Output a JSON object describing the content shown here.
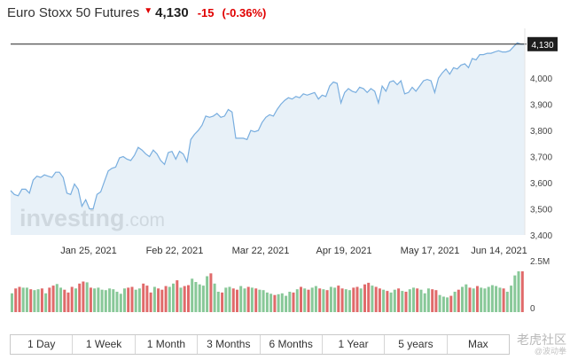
{
  "header": {
    "title": "Euro Stoxx 50 Futures",
    "price": "4,130",
    "change": "-15",
    "change_pct": "(-0.36%)",
    "colors": {
      "down": "#e00000"
    }
  },
  "watermark": {
    "logo": "investing.com",
    "corner_big": "老虎社区",
    "corner_small": "@波动拳"
  },
  "tabs": [
    "1 Day",
    "1 Week",
    "1 Month",
    "3 Months",
    "6 Months",
    "1 Year",
    "5 years",
    "Max"
  ],
  "chart_data": {
    "type": "area",
    "x_tick_labels": [
      "Jan 25, 2021",
      "Feb 22, 2021",
      "Mar 22, 2021",
      "Apr 19, 2021",
      "May 17, 2021",
      "Jun 14, 2021"
    ],
    "y_tick_labels": [
      "4,000",
      "3,900",
      "3,800",
      "3,700",
      "3,600",
      "3,500",
      "3,400"
    ],
    "y_ticks": [
      4000,
      3900,
      3800,
      3700,
      3600,
      3500,
      3400
    ],
    "ylim": [
      3400,
      4170
    ],
    "last_value": 4130,
    "last_value_label": "4,130",
    "series": [
      {
        "values": [
          3570,
          3555,
          3550,
          3575,
          3575,
          3560,
          3610,
          3625,
          3620,
          3630,
          3625,
          3620,
          3640,
          3640,
          3620,
          3560,
          3555,
          3595,
          3575,
          3510,
          3535,
          3500,
          3500,
          3555,
          3565,
          3605,
          3645,
          3655,
          3660,
          3695,
          3700,
          3690,
          3685,
          3705,
          3735,
          3725,
          3710,
          3700,
          3725,
          3710,
          3685,
          3670,
          3715,
          3720,
          3690,
          3720,
          3710,
          3680,
          3765,
          3785,
          3800,
          3820,
          3855,
          3850,
          3855,
          3865,
          3850,
          3855,
          3880,
          3870,
          3770,
          3770,
          3770,
          3765,
          3800,
          3795,
          3800,
          3830,
          3850,
          3860,
          3855,
          3880,
          3900,
          3915,
          3925,
          3920,
          3930,
          3925,
          3940,
          3935,
          3940,
          3945,
          3920,
          3935,
          3930,
          3970,
          3985,
          3980,
          3905,
          3945,
          3960,
          3950,
          3945,
          3965,
          3960,
          3945,
          3960,
          3950,
          3905,
          3970,
          3950,
          3985,
          3990,
          3975,
          3990,
          3940,
          3945,
          3965,
          3950,
          3970,
          3990,
          3995,
          3990,
          3945,
          4000,
          4020,
          4035,
          4015,
          4040,
          4035,
          4050,
          4055,
          4040,
          4075,
          4070,
          4090,
          4090,
          4095,
          4095,
          4100,
          4105,
          4100,
          4100,
          4105,
          4120,
          4135,
          4130,
          4130
        ],
        "color": "#79aedf",
        "fill": "#e4eef7"
      }
    ],
    "volume": {
      "axis_labels": [
        "2.5M",
        "0"
      ],
      "values": [
        0.46,
        0.58,
        0.62,
        0.6,
        0.6,
        0.56,
        0.54,
        0.56,
        0.58,
        0.46,
        0.6,
        0.65,
        0.69,
        0.6,
        0.55,
        0.48,
        0.62,
        0.58,
        0.7,
        0.75,
        0.73,
        0.6,
        0.58,
        0.6,
        0.55,
        0.54,
        0.58,
        0.56,
        0.5,
        0.45,
        0.58,
        0.6,
        0.62,
        0.55,
        0.58,
        0.7,
        0.65,
        0.48,
        0.62,
        0.58,
        0.55,
        0.64,
        0.62,
        0.7,
        0.78,
        0.6,
        0.64,
        0.66,
        0.82,
        0.74,
        0.68,
        0.65,
        0.88,
        0.95,
        0.7,
        0.5,
        0.48,
        0.6,
        0.62,
        0.58,
        0.55,
        0.64,
        0.58,
        0.62,
        0.6,
        0.58,
        0.55,
        0.54,
        0.48,
        0.45,
        0.42,
        0.44,
        0.46,
        0.4,
        0.5,
        0.48,
        0.56,
        0.62,
        0.58,
        0.55,
        0.6,
        0.64,
        0.58,
        0.56,
        0.54,
        0.62,
        0.6,
        0.65,
        0.58,
        0.56,
        0.54,
        0.6,
        0.62,
        0.58,
        0.68,
        0.72,
        0.65,
        0.62,
        0.58,
        0.55,
        0.52,
        0.48,
        0.55,
        0.58,
        0.52,
        0.5,
        0.56,
        0.6,
        0.58,
        0.55,
        0.46,
        0.58,
        0.56,
        0.54,
        0.42,
        0.38,
        0.36,
        0.4,
        0.5,
        0.55,
        0.62,
        0.68,
        0.6,
        0.58,
        0.64,
        0.6,
        0.58,
        0.62,
        0.66,
        0.64,
        0.6,
        0.58,
        0.5,
        0.65,
        0.9,
        1.0,
        1.0
      ],
      "up_color": "#88c898",
      "down_color": "#e06a6a"
    }
  }
}
